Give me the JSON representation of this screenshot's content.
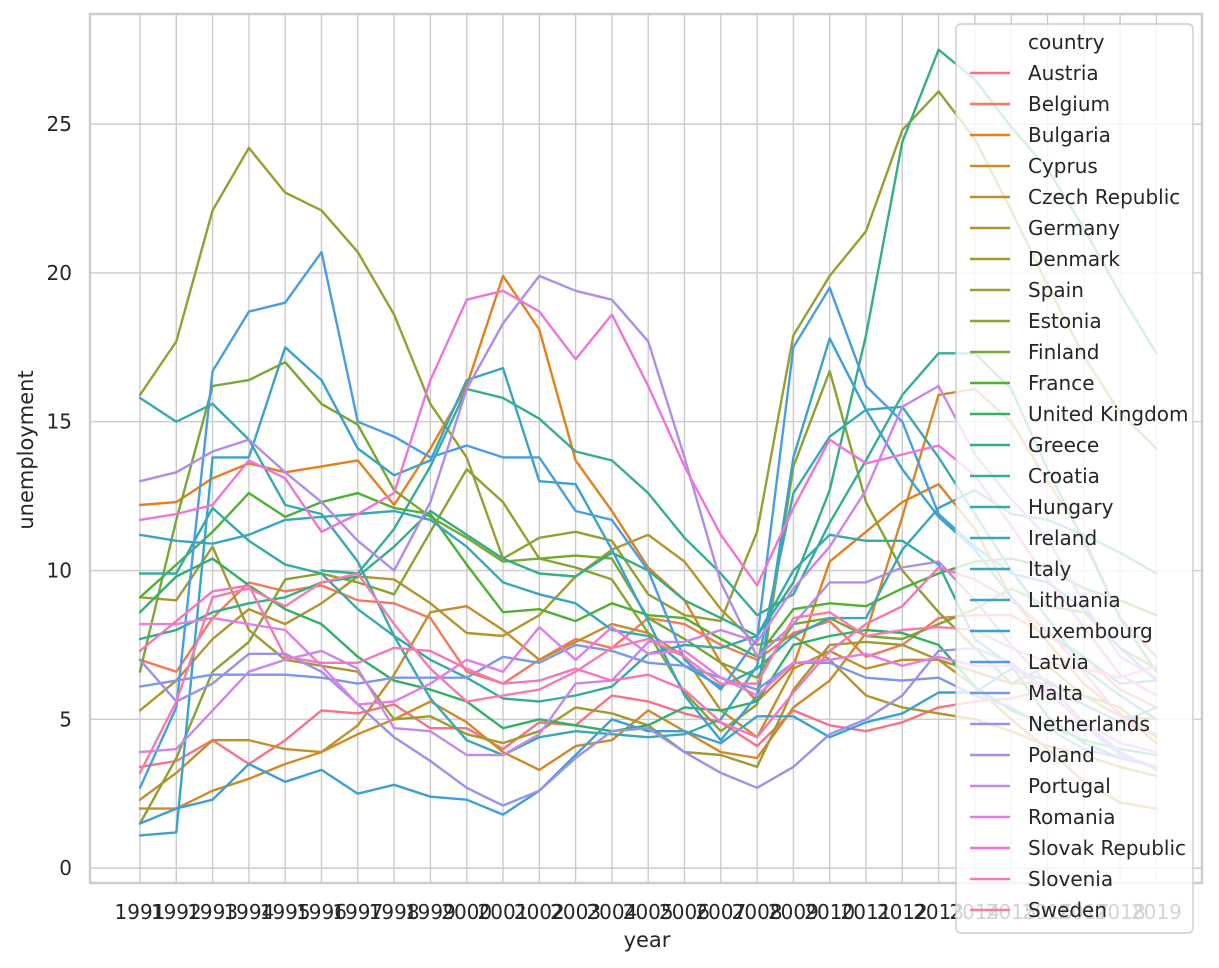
{
  "chart_data": {
    "type": "line",
    "xlabel": "year",
    "ylabel": "unemployment",
    "x": [
      "1991",
      "1992",
      "1993",
      "1994",
      "1995",
      "1996",
      "1997",
      "1998",
      "1999",
      "2000",
      "2001",
      "2002",
      "2003",
      "2004",
      "2005",
      "2006",
      "2007",
      "2008",
      "2009",
      "2010",
      "2011",
      "2012",
      "2013",
      "2014",
      "2015",
      "2016",
      "2017",
      "2018",
      "2019"
    ],
    "ylim": [
      -0.5,
      28.7
    ],
    "yticks": [
      0,
      5,
      10,
      15,
      20,
      25
    ],
    "grid": true,
    "legend_title": "country",
    "legend_position": "upper right",
    "series": [
      {
        "name": "Austria",
        "color": "#f77189",
        "values": [
          3.4,
          3.6,
          4.3,
          3.5,
          4.3,
          5.3,
          5.2,
          5.5,
          4.7,
          4.7,
          4.0,
          4.9,
          4.8,
          5.8,
          5.6,
          5.2,
          4.9,
          4.1,
          5.3,
          4.8,
          4.6,
          4.9,
          5.4,
          5.6,
          5.7,
          6.0,
          5.5,
          4.9,
          4.5
        ]
      },
      {
        "name": "Belgium",
        "color": "#f3795c",
        "values": [
          7.0,
          6.6,
          8.4,
          9.6,
          9.3,
          9.5,
          9.0,
          8.9,
          8.4,
          6.6,
          6.2,
          7.0,
          7.7,
          7.4,
          8.4,
          8.2,
          7.5,
          7.0,
          7.9,
          8.3,
          7.1,
          7.5,
          8.4,
          8.5,
          8.5,
          7.8,
          7.1,
          6.0,
          5.4
        ]
      },
      {
        "name": "Bulgaria",
        "color": "#e3801d",
        "values": [
          12.2,
          12.3,
          13.1,
          13.6,
          13.3,
          13.5,
          13.7,
          12.2,
          14.1,
          16.2,
          19.9,
          18.1,
          13.7,
          12.0,
          10.1,
          9.0,
          6.9,
          5.6,
          6.8,
          10.3,
          11.3,
          12.3,
          12.9,
          11.4,
          9.1,
          7.6,
          6.2,
          5.2,
          4.2
        ]
      },
      {
        "name": "Cyprus",
        "color": "#d28a28",
        "values": [
          2.0,
          2.0,
          2.6,
          3.0,
          3.5,
          3.9,
          4.5,
          5.0,
          5.6,
          4.9,
          3.9,
          3.3,
          4.1,
          4.3,
          5.3,
          4.6,
          3.9,
          3.7,
          5.4,
          6.3,
          7.9,
          11.8,
          15.9,
          16.1,
          15.0,
          13.0,
          11.1,
          8.4,
          7.1
        ]
      },
      {
        "name": "Czech Republic",
        "color": "#c1902a",
        "values": [
          2.3,
          3.2,
          4.3,
          4.3,
          4.0,
          3.9,
          4.8,
          6.5,
          8.6,
          8.8,
          8.0,
          7.0,
          7.6,
          8.2,
          7.9,
          7.1,
          5.3,
          4.4,
          6.7,
          7.3,
          6.7,
          7.0,
          7.0,
          6.1,
          5.0,
          4.0,
          2.9,
          2.2,
          2.0
        ]
      },
      {
        "name": "Germany",
        "color": "#b2952d",
        "values": [
          5.3,
          6.3,
          7.7,
          8.7,
          8.2,
          8.9,
          9.8,
          9.7,
          8.9,
          7.9,
          7.8,
          8.5,
          9.8,
          10.7,
          11.2,
          10.3,
          8.7,
          7.5,
          7.8,
          7.0,
          5.8,
          5.4,
          5.2,
          5.0,
          4.6,
          4.1,
          3.8,
          3.4,
          3.1
        ]
      },
      {
        "name": "Denmark",
        "color": "#a39a2f",
        "values": [
          9.1,
          9.0,
          10.8,
          8.0,
          7.0,
          6.8,
          6.6,
          5.0,
          5.1,
          4.5,
          4.2,
          4.6,
          5.4,
          5.2,
          4.8,
          3.9,
          3.8,
          3.4,
          6.0,
          7.5,
          7.6,
          7.5,
          7.0,
          6.6,
          6.2,
          6.2,
          5.8,
          5.1,
          5.0
        ]
      },
      {
        "name": "Spain",
        "color": "#989e31",
        "values": [
          15.9,
          17.7,
          22.1,
          24.2,
          22.7,
          22.1,
          20.7,
          18.6,
          15.6,
          13.8,
          10.4,
          11.1,
          11.3,
          11.0,
          9.2,
          8.5,
          8.3,
          11.3,
          17.9,
          19.9,
          21.4,
          24.8,
          26.1,
          24.5,
          22.1,
          19.6,
          17.2,
          15.3,
          14.1
        ]
      },
      {
        "name": "Estonia",
        "color": "#8ba232",
        "values": [
          1.5,
          3.7,
          6.6,
          7.6,
          9.7,
          9.9,
          9.6,
          9.2,
          11.3,
          13.4,
          12.3,
          10.4,
          10.1,
          9.7,
          7.9,
          5.9,
          4.6,
          5.5,
          13.5,
          16.7,
          12.3,
          10.0,
          8.6,
          7.4,
          6.2,
          6.8,
          5.8,
          5.4,
          4.4
        ]
      },
      {
        "name": "Finland",
        "color": "#79a732",
        "values": [
          6.6,
          11.7,
          16.2,
          16.4,
          17.0,
          15.6,
          14.9,
          12.7,
          11.8,
          11.1,
          10.3,
          10.4,
          10.5,
          10.4,
          8.4,
          7.7,
          6.9,
          6.4,
          8.2,
          8.4,
          7.8,
          7.7,
          8.2,
          8.7,
          9.4,
          8.8,
          8.6,
          7.4,
          6.7
        ]
      },
      {
        "name": "France",
        "color": "#4fb032",
        "values": [
          9.1,
          10.2,
          11.3,
          12.6,
          11.8,
          12.3,
          12.6,
          12.1,
          11.9,
          10.2,
          8.6,
          8.7,
          8.3,
          8.9,
          8.5,
          8.4,
          7.7,
          7.1,
          8.7,
          8.9,
          8.8,
          9.4,
          9.9,
          10.3,
          10.4,
          10.1,
          9.4,
          9.0,
          8.5
        ]
      },
      {
        "name": "United Kingdom",
        "color": "#33b065",
        "values": [
          8.6,
          9.8,
          10.4,
          9.5,
          8.7,
          8.2,
          7.1,
          6.3,
          6.0,
          5.6,
          4.7,
          5.0,
          4.8,
          4.6,
          4.8,
          5.4,
          5.3,
          5.6,
          7.5,
          7.8,
          8.0,
          7.9,
          7.5,
          6.1,
          5.3,
          4.8,
          4.3,
          4.0,
          3.8
        ]
      },
      {
        "name": "Greece",
        "color": "#35ae84",
        "values": [
          7.7,
          8.0,
          8.6,
          8.9,
          9.1,
          9.6,
          9.8,
          10.8,
          12.0,
          11.2,
          10.4,
          9.9,
          9.8,
          10.6,
          10.0,
          9.0,
          8.4,
          7.8,
          9.6,
          12.7,
          17.9,
          24.4,
          27.5,
          26.5,
          24.9,
          23.5,
          21.5,
          19.3,
          17.3
        ]
      },
      {
        "name": "Croatia",
        "color": "#37ac96",
        "values": [
          null,
          null,
          null,
          null,
          null,
          10.0,
          9.9,
          11.4,
          13.5,
          16.1,
          15.8,
          15.1,
          14.0,
          13.7,
          12.6,
          11.1,
          9.9,
          8.5,
          9.2,
          11.6,
          13.7,
          15.9,
          17.3,
          17.3,
          16.1,
          13.4,
          11.0,
          8.4,
          6.6
        ]
      },
      {
        "name": "Hungary",
        "color": "#38aaa4",
        "values": [
          9.9,
          9.9,
          12.1,
          11.0,
          10.2,
          9.9,
          8.7,
          7.8,
          7.0,
          6.4,
          5.7,
          5.6,
          5.8,
          6.1,
          7.2,
          7.5,
          7.4,
          7.8,
          10.0,
          11.2,
          11.0,
          11.0,
          10.2,
          7.7,
          6.8,
          5.1,
          4.2,
          3.7,
          3.4
        ]
      },
      {
        "name": "Ireland",
        "color": "#39a8b1",
        "values": [
          15.8,
          15.0,
          15.6,
          14.4,
          12.2,
          11.9,
          10.3,
          7.8,
          5.7,
          4.3,
          3.8,
          4.4,
          4.6,
          4.5,
          4.4,
          4.5,
          5.0,
          6.8,
          12.6,
          14.5,
          15.4,
          15.5,
          13.8,
          11.9,
          10.0,
          8.4,
          6.7,
          5.8,
          5.0
        ]
      },
      {
        "name": "Italy",
        "color": "#3aa6bd",
        "values": [
          11.2,
          11.0,
          10.9,
          11.2,
          11.7,
          11.8,
          11.9,
          12.0,
          11.7,
          10.8,
          9.6,
          9.2,
          8.9,
          8.0,
          7.8,
          6.8,
          6.1,
          6.7,
          7.8,
          8.4,
          8.4,
          10.7,
          12.1,
          12.7,
          11.9,
          11.7,
          11.2,
          10.6,
          9.9
        ]
      },
      {
        "name": "Lithuania",
        "color": "#3ba3ca",
        "values": [
          1.1,
          1.2,
          13.8,
          13.8,
          17.5,
          16.4,
          14.1,
          13.2,
          13.7,
          16.4,
          16.8,
          13.0,
          12.9,
          10.7,
          8.3,
          5.8,
          4.3,
          5.8,
          13.8,
          17.8,
          15.4,
          13.4,
          11.8,
          10.7,
          9.1,
          7.9,
          7.1,
          6.2,
          6.3
        ]
      },
      {
        "name": "Luxembourg",
        "color": "#3ca0d6",
        "values": [
          1.5,
          2.0,
          2.3,
          3.5,
          2.9,
          3.3,
          2.5,
          2.8,
          2.4,
          2.3,
          1.8,
          2.6,
          3.8,
          5.0,
          4.6,
          4.6,
          4.2,
          5.1,
          5.1,
          4.4,
          4.9,
          5.2,
          5.9,
          5.9,
          6.7,
          6.3,
          5.5,
          4.9,
          5.4
        ]
      },
      {
        "name": "Latvia",
        "color": "#4a9de4",
        "values": [
          2.7,
          5.4,
          16.7,
          18.7,
          19.0,
          20.7,
          15.0,
          14.5,
          13.8,
          14.2,
          13.8,
          13.8,
          12.0,
          11.7,
          10.0,
          7.0,
          6.0,
          7.7,
          17.5,
          19.5,
          16.2,
          15.0,
          11.9,
          10.8,
          9.9,
          9.6,
          8.7,
          7.4,
          6.3
        ]
      },
      {
        "name": "Malta",
        "color": "#7a97eb",
        "values": [
          6.1,
          6.3,
          6.5,
          6.5,
          6.5,
          6.4,
          6.2,
          6.4,
          6.4,
          6.4,
          7.1,
          6.9,
          7.5,
          7.3,
          6.9,
          6.8,
          6.4,
          6.0,
          6.9,
          6.9,
          6.4,
          6.3,
          6.4,
          5.8,
          5.4,
          4.7,
          4.0,
          3.7,
          3.4
        ]
      },
      {
        "name": "Netherlands",
        "color": "#9a91eb",
        "values": [
          7.0,
          5.6,
          6.2,
          7.2,
          7.2,
          6.6,
          5.5,
          4.4,
          3.6,
          2.7,
          2.1,
          2.6,
          3.7,
          4.6,
          4.7,
          3.9,
          3.2,
          2.7,
          3.4,
          4.5,
          5.0,
          5.8,
          7.3,
          7.4,
          6.9,
          6.0,
          4.8,
          3.8,
          3.4
        ]
      },
      {
        "name": "Poland",
        "color": "#b08ceb",
        "values": [
          13.0,
          13.3,
          14.0,
          14.4,
          13.3,
          12.3,
          11.0,
          10.0,
          12.3,
          16.1,
          18.3,
          19.9,
          19.4,
          19.1,
          17.7,
          13.8,
          9.6,
          7.1,
          8.2,
          9.6,
          9.6,
          10.1,
          10.3,
          9.0,
          7.5,
          6.2,
          4.9,
          3.9,
          3.3
        ]
      },
      {
        "name": "Portugal",
        "color": "#c887ee",
        "values": [
          3.9,
          4.0,
          5.3,
          6.6,
          7.0,
          7.3,
          6.7,
          4.7,
          4.6,
          3.8,
          3.8,
          4.5,
          6.2,
          6.3,
          7.6,
          7.6,
          8.0,
          7.6,
          9.4,
          10.8,
          12.7,
          15.5,
          16.2,
          13.9,
          12.4,
          11.1,
          8.9,
          7.1,
          6.4
        ]
      },
      {
        "name": "Romania",
        "color": "#e37ee6",
        "values": [
          8.2,
          8.2,
          8.4,
          8.2,
          8.0,
          6.8,
          5.5,
          5.6,
          6.2,
          7.0,
          6.6,
          8.1,
          7.0,
          8.1,
          7.2,
          7.3,
          6.4,
          5.8,
          6.9,
          7.0,
          7.2,
          6.8,
          7.1,
          6.8,
          6.8,
          5.9,
          4.9,
          4.2,
          3.9
        ]
      },
      {
        "name": "Slovak Republic",
        "color": "#f075d6",
        "values": [
          11.7,
          11.9,
          12.2,
          13.7,
          13.1,
          11.3,
          11.9,
          12.6,
          16.4,
          19.1,
          19.4,
          18.7,
          17.1,
          18.6,
          16.2,
          13.5,
          11.2,
          9.5,
          12.1,
          14.4,
          13.6,
          13.9,
          14.2,
          13.2,
          11.5,
          9.7,
          8.1,
          6.5,
          5.8
        ]
      },
      {
        "name": "Slovenia",
        "color": "#f577bb",
        "values": [
          7.3,
          8.3,
          9.3,
          9.5,
          7.1,
          6.9,
          6.9,
          7.4,
          7.3,
          6.7,
          6.2,
          6.3,
          6.7,
          6.3,
          6.5,
          6.0,
          4.9,
          4.4,
          5.9,
          7.3,
          8.2,
          8.8,
          10.1,
          9.7,
          9.0,
          8.0,
          6.6,
          5.1,
          4.5
        ]
      },
      {
        "name": "Sweden",
        "color": "#f77cac",
        "values": [
          3.2,
          5.6,
          9.1,
          9.4,
          8.8,
          9.6,
          9.9,
          8.2,
          6.7,
          5.6,
          5.8,
          6.0,
          6.6,
          7.4,
          7.7,
          7.1,
          6.2,
          6.2,
          8.4,
          8.6,
          7.8,
          8.0,
          8.1,
          8.0,
          7.4,
          6.9,
          6.7,
          6.4,
          6.8
        ]
      }
    ]
  }
}
